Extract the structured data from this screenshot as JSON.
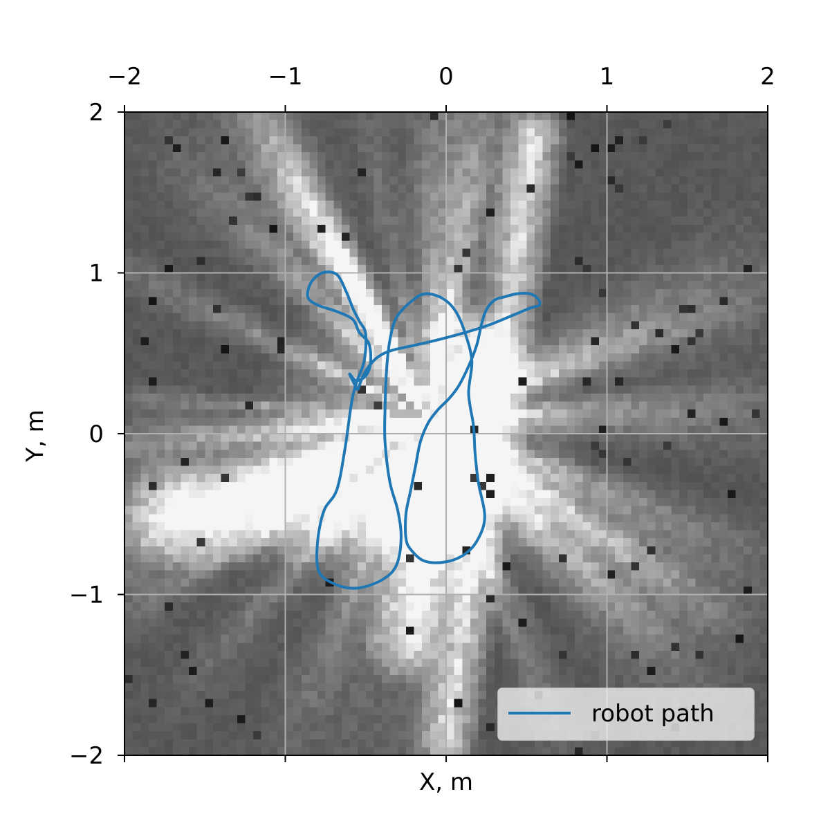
{
  "chart_data": {
    "type": "line",
    "xlabel": "X, m",
    "ylabel": "Y, m",
    "xlim": [
      -2,
      2
    ],
    "ylim": [
      -2,
      2
    ],
    "x_ticks": [
      -2,
      -1,
      0,
      1,
      2
    ],
    "y_ticks": [
      -2,
      -1,
      0,
      1,
      2
    ],
    "x_tick_labels": [
      "−2",
      "−1",
      "0",
      "1",
      "2"
    ],
    "y_tick_labels": [
      "−2",
      "−1",
      "0",
      "1",
      "2"
    ],
    "x_tick_position": "top",
    "grid": true,
    "legend_position": "lower-right",
    "background": "grayscale occupancy map",
    "series": [
      {
        "name": "robot path",
        "color": "#1f77b4",
        "points": [
          [
            -0.55,
            0.27
          ],
          [
            -0.52,
            0.35
          ],
          [
            -0.48,
            0.42
          ],
          [
            -0.42,
            0.48
          ],
          [
            -0.33,
            0.52
          ],
          [
            -0.15,
            0.56
          ],
          [
            0.05,
            0.61
          ],
          [
            0.25,
            0.67
          ],
          [
            0.4,
            0.73
          ],
          [
            0.52,
            0.78
          ],
          [
            0.58,
            0.8
          ],
          [
            0.57,
            0.84
          ],
          [
            0.52,
            0.87
          ],
          [
            0.44,
            0.87
          ],
          [
            0.36,
            0.85
          ],
          [
            0.3,
            0.83
          ],
          [
            0.25,
            0.77
          ],
          [
            0.22,
            0.68
          ],
          [
            0.19,
            0.55
          ],
          [
            0.14,
            0.42
          ],
          [
            0.08,
            0.3
          ],
          [
            0.02,
            0.22
          ],
          [
            -0.05,
            0.15
          ],
          [
            -0.11,
            0.07
          ],
          [
            -0.16,
            -0.05
          ],
          [
            -0.19,
            -0.2
          ],
          [
            -0.22,
            -0.35
          ],
          [
            -0.25,
            -0.5
          ],
          [
            -0.25,
            -0.65
          ],
          [
            -0.22,
            -0.72
          ],
          [
            -0.14,
            -0.79
          ],
          [
            -0.02,
            -0.8
          ],
          [
            0.1,
            -0.76
          ],
          [
            0.19,
            -0.67
          ],
          [
            0.24,
            -0.52
          ],
          [
            0.2,
            -0.3
          ],
          [
            0.18,
            -0.12
          ],
          [
            0.17,
            0.05
          ],
          [
            0.14,
            0.25
          ],
          [
            0.16,
            0.45
          ],
          [
            0.12,
            0.62
          ],
          [
            0.06,
            0.76
          ],
          [
            -0.02,
            0.84
          ],
          [
            -0.13,
            0.87
          ],
          [
            -0.22,
            0.82
          ],
          [
            -0.31,
            0.72
          ],
          [
            -0.35,
            0.58
          ],
          [
            -0.37,
            0.4
          ],
          [
            -0.38,
            0.15
          ],
          [
            -0.38,
            -0.05
          ],
          [
            -0.35,
            -0.3
          ],
          [
            -0.3,
            -0.48
          ],
          [
            -0.28,
            -0.65
          ],
          [
            -0.31,
            -0.82
          ],
          [
            -0.4,
            -0.91
          ],
          [
            -0.55,
            -0.96
          ],
          [
            -0.68,
            -0.94
          ],
          [
            -0.79,
            -0.86
          ],
          [
            -0.8,
            -0.68
          ],
          [
            -0.76,
            -0.48
          ],
          [
            -0.68,
            -0.35
          ],
          [
            -0.63,
            -0.1
          ],
          [
            -0.59,
            0.18
          ],
          [
            -0.56,
            0.31
          ],
          [
            -0.51,
            0.45
          ],
          [
            -0.5,
            0.62
          ],
          [
            -0.54,
            0.7
          ],
          [
            -0.58,
            0.78
          ],
          [
            -0.62,
            0.88
          ],
          [
            -0.68,
            0.99
          ],
          [
            -0.77,
            1.0
          ],
          [
            -0.84,
            0.94
          ],
          [
            -0.86,
            0.85
          ],
          [
            -0.8,
            0.8
          ],
          [
            -0.68,
            0.76
          ],
          [
            -0.58,
            0.71
          ],
          [
            -0.54,
            0.63
          ],
          [
            -0.48,
            0.56
          ],
          [
            -0.47,
            0.44
          ],
          [
            -0.5,
            0.36
          ],
          [
            -0.56,
            0.33
          ],
          [
            -0.6,
            0.37
          ],
          [
            -0.55,
            0.27
          ]
        ]
      }
    ]
  }
}
